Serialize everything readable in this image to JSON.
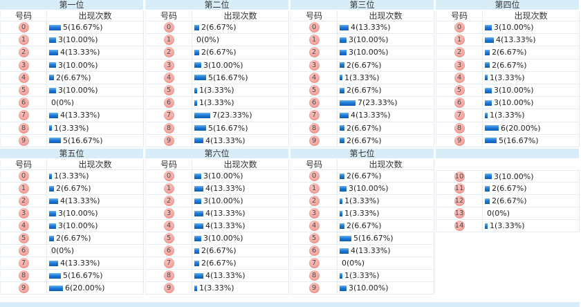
{
  "headers": {
    "number": "号码",
    "count": "出现次数"
  },
  "colors": {
    "band": "#d9edf8",
    "badge_pink": "#f2a09a",
    "bar_blue_top": "#6ab4f0",
    "bar_blue_bottom": "#0b5cb8",
    "row_border": "#e2ecf5",
    "text": "#333333"
  },
  "sections": [
    {
      "title": "第一位",
      "blank": false,
      "rows": [
        [
          "0",
          5,
          "5(16.67%)"
        ],
        [
          "1",
          3,
          "3(10.00%)"
        ],
        [
          "2",
          4,
          "4(13.33%)"
        ],
        [
          "3",
          3,
          "3(10.00%)"
        ],
        [
          "4",
          2,
          "2(6.67%)"
        ],
        [
          "5",
          3,
          "3(10.00%)"
        ],
        [
          "6",
          0,
          "0(0%)"
        ],
        [
          "7",
          4,
          "4(13.33%)"
        ],
        [
          "8",
          1,
          "1(3.33%)"
        ],
        [
          "9",
          5,
          "5(16.67%)"
        ]
      ]
    },
    {
      "title": "第二位",
      "blank": false,
      "rows": [
        [
          "0",
          2,
          "2(6.67%)"
        ],
        [
          "1",
          0,
          "0(0%)"
        ],
        [
          "2",
          2,
          "2(6.67%)"
        ],
        [
          "3",
          3,
          "3(10.00%)"
        ],
        [
          "4",
          5,
          "5(16.67%)"
        ],
        [
          "5",
          1,
          "1(3.33%)"
        ],
        [
          "6",
          1,
          "1(3.33%)"
        ],
        [
          "7",
          7,
          "7(23.33%)"
        ],
        [
          "8",
          5,
          "5(16.67%)"
        ],
        [
          "9",
          4,
          "4(13.33%)"
        ]
      ]
    },
    {
      "title": "第三位",
      "blank": false,
      "rows": [
        [
          "0",
          4,
          "4(13.33%)"
        ],
        [
          "1",
          3,
          "3(10.00%)"
        ],
        [
          "2",
          3,
          "3(10.00%)"
        ],
        [
          "3",
          2,
          "2(6.67%)"
        ],
        [
          "4",
          1,
          "1(3.33%)"
        ],
        [
          "5",
          2,
          "2(6.67%)"
        ],
        [
          "6",
          7,
          "7(23.33%)"
        ],
        [
          "7",
          4,
          "4(13.33%)"
        ],
        [
          "8",
          2,
          "2(6.67%)"
        ],
        [
          "9",
          2,
          "2(6.67%)"
        ]
      ]
    },
    {
      "title": "第四位",
      "blank": false,
      "rows": [
        [
          "0",
          3,
          "3(10.00%)"
        ],
        [
          "1",
          4,
          "4(13.33%)"
        ],
        [
          "2",
          2,
          "2(6.67%)"
        ],
        [
          "3",
          2,
          "2(6.67%)"
        ],
        [
          "4",
          1,
          "1(3.33%)"
        ],
        [
          "5",
          3,
          "3(10.00%)"
        ],
        [
          "6",
          3,
          "3(10.00%)"
        ],
        [
          "7",
          1,
          "1(3.33%)"
        ],
        [
          "8",
          6,
          "6(20.00%)"
        ],
        [
          "9",
          5,
          "5(16.67%)"
        ]
      ]
    },
    {
      "title": "第五位",
      "blank": false,
      "rows": [
        [
          "0",
          1,
          "1(3.33%)"
        ],
        [
          "1",
          2,
          "2(6.67%)"
        ],
        [
          "2",
          4,
          "4(13.33%)"
        ],
        [
          "3",
          3,
          "3(10.00%)"
        ],
        [
          "4",
          3,
          "3(10.00%)"
        ],
        [
          "5",
          2,
          "2(6.67%)"
        ],
        [
          "6",
          0,
          "0(0%)"
        ],
        [
          "7",
          4,
          "4(13.33%)"
        ],
        [
          "8",
          5,
          "5(16.67%)"
        ],
        [
          "9",
          6,
          "6(20.00%)"
        ]
      ]
    },
    {
      "title": "第六位",
      "blank": false,
      "rows": [
        [
          "0",
          3,
          "3(10.00%)"
        ],
        [
          "1",
          4,
          "4(13.33%)"
        ],
        [
          "2",
          3,
          "3(10.00%)"
        ],
        [
          "3",
          4,
          "4(13.33%)"
        ],
        [
          "4",
          4,
          "4(13.33%)"
        ],
        [
          "5",
          3,
          "3(10.00%)"
        ],
        [
          "6",
          2,
          "2(6.67%)"
        ],
        [
          "7",
          2,
          "2(6.67%)"
        ],
        [
          "8",
          4,
          "4(13.33%)"
        ],
        [
          "9",
          1,
          "1(3.33%)"
        ]
      ]
    },
    {
      "title": "第七位",
      "blank": false,
      "rows": [
        [
          "0",
          2,
          "2(6.67%)"
        ],
        [
          "1",
          3,
          "3(10.00%)"
        ],
        [
          "2",
          1,
          "1(3.33%)"
        ],
        [
          "3",
          1,
          "1(3.33%)"
        ],
        [
          "4",
          2,
          "2(6.67%)"
        ],
        [
          "5",
          5,
          "5(16.67%)"
        ],
        [
          "6",
          4,
          "4(13.33%)"
        ],
        [
          "7",
          0,
          "0(0%)"
        ],
        [
          "8",
          1,
          "1(3.33%)"
        ],
        [
          "9",
          3,
          "3(10.00%)"
        ]
      ]
    },
    {
      "title": "",
      "blank": true,
      "rows": [
        [
          "10",
          3,
          "3(10.00%)"
        ],
        [
          "11",
          2,
          "2(6.67%)"
        ],
        [
          "12",
          2,
          "2(6.67%)"
        ],
        [
          "13",
          0,
          "0(0%)"
        ],
        [
          "14",
          1,
          "1(3.33%)"
        ]
      ]
    }
  ],
  "chart_data": [
    {
      "type": "bar",
      "title": "第一位",
      "categories": [
        0,
        1,
        2,
        3,
        4,
        5,
        6,
        7,
        8,
        9
      ],
      "values": [
        5,
        3,
        4,
        3,
        2,
        3,
        0,
        4,
        1,
        5
      ],
      "percents": [
        "16.67%",
        "10.00%",
        "13.33%",
        "10.00%",
        "6.67%",
        "10.00%",
        "0%",
        "13.33%",
        "3.33%",
        "16.67%"
      ],
      "xlabel": "号码",
      "ylabel": "出现次数"
    },
    {
      "type": "bar",
      "title": "第二位",
      "categories": [
        0,
        1,
        2,
        3,
        4,
        5,
        6,
        7,
        8,
        9
      ],
      "values": [
        2,
        0,
        2,
        3,
        5,
        1,
        1,
        7,
        5,
        4
      ],
      "percents": [
        "6.67%",
        "0%",
        "6.67%",
        "10.00%",
        "16.67%",
        "3.33%",
        "3.33%",
        "23.33%",
        "16.67%",
        "13.33%"
      ],
      "xlabel": "号码",
      "ylabel": "出现次数"
    },
    {
      "type": "bar",
      "title": "第三位",
      "categories": [
        0,
        1,
        2,
        3,
        4,
        5,
        6,
        7,
        8,
        9
      ],
      "values": [
        4,
        3,
        3,
        2,
        1,
        2,
        7,
        4,
        2,
        2
      ],
      "percents": [
        "13.33%",
        "10.00%",
        "10.00%",
        "6.67%",
        "3.33%",
        "6.67%",
        "23.33%",
        "13.33%",
        "6.67%",
        "6.67%"
      ],
      "xlabel": "号码",
      "ylabel": "出现次数"
    },
    {
      "type": "bar",
      "title": "第四位",
      "categories": [
        0,
        1,
        2,
        3,
        4,
        5,
        6,
        7,
        8,
        9
      ],
      "values": [
        3,
        4,
        2,
        2,
        1,
        3,
        3,
        1,
        6,
        5
      ],
      "percents": [
        "10.00%",
        "13.33%",
        "6.67%",
        "6.67%",
        "3.33%",
        "10.00%",
        "10.00%",
        "3.33%",
        "20.00%",
        "16.67%"
      ],
      "xlabel": "号码",
      "ylabel": "出现次数"
    },
    {
      "type": "bar",
      "title": "第五位",
      "categories": [
        0,
        1,
        2,
        3,
        4,
        5,
        6,
        7,
        8,
        9
      ],
      "values": [
        1,
        2,
        4,
        3,
        3,
        2,
        0,
        4,
        5,
        6
      ],
      "percents": [
        "3.33%",
        "6.67%",
        "13.33%",
        "10.00%",
        "10.00%",
        "6.67%",
        "0%",
        "13.33%",
        "16.67%",
        "20.00%"
      ],
      "xlabel": "号码",
      "ylabel": "出现次数"
    },
    {
      "type": "bar",
      "title": "第六位",
      "categories": [
        0,
        1,
        2,
        3,
        4,
        5,
        6,
        7,
        8,
        9
      ],
      "values": [
        3,
        4,
        3,
        4,
        4,
        3,
        2,
        2,
        4,
        1
      ],
      "percents": [
        "10.00%",
        "13.33%",
        "10.00%",
        "13.33%",
        "13.33%",
        "10.00%",
        "6.67%",
        "6.67%",
        "13.33%",
        "3.33%"
      ],
      "xlabel": "号码",
      "ylabel": "出现次数"
    },
    {
      "type": "bar",
      "title": "第七位",
      "categories": [
        0,
        1,
        2,
        3,
        4,
        5,
        6,
        7,
        8,
        9
      ],
      "values": [
        2,
        3,
        1,
        1,
        2,
        5,
        4,
        0,
        1,
        3
      ],
      "percents": [
        "6.67%",
        "10.00%",
        "3.33%",
        "3.33%",
        "6.67%",
        "16.67%",
        "13.33%",
        "0%",
        "3.33%",
        "10.00%"
      ],
      "xlabel": "号码",
      "ylabel": "出现次数"
    },
    {
      "type": "bar",
      "title": "",
      "categories": [
        10,
        11,
        12,
        13,
        14
      ],
      "values": [
        3,
        2,
        2,
        0,
        1
      ],
      "percents": [
        "10.00%",
        "6.67%",
        "6.67%",
        "0%",
        "3.33%"
      ],
      "xlabel": "号码",
      "ylabel": "出现次数"
    }
  ]
}
